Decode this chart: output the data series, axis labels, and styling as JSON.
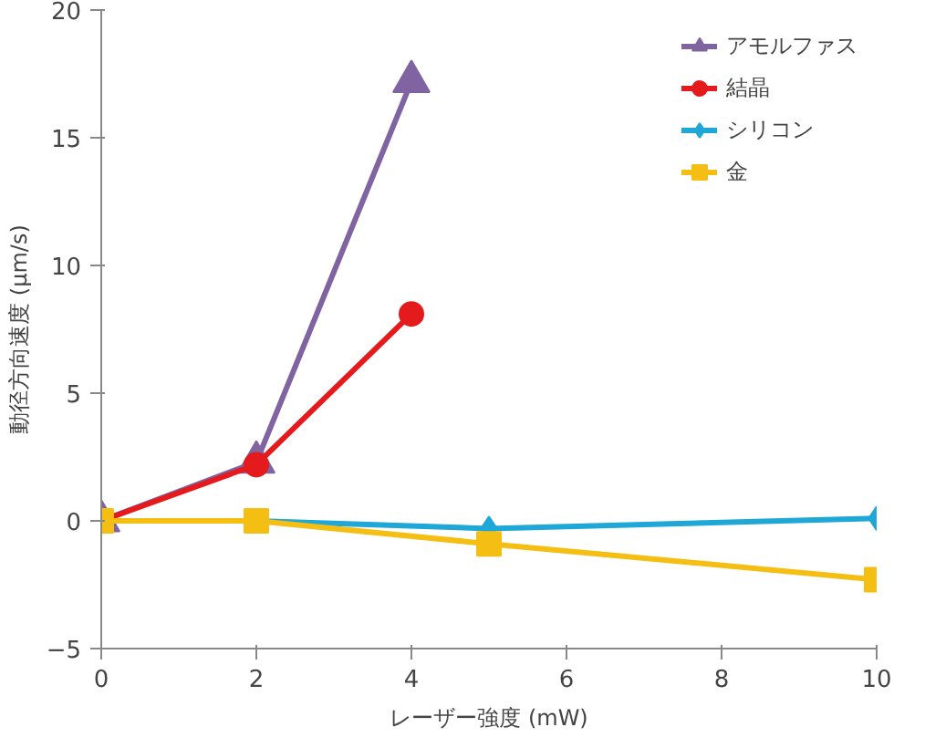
{
  "chart_data": {
    "type": "line",
    "xlabel": "レーザー強度 (mW)",
    "ylabel": "動径方向速度 (μm/s)",
    "xlim": [
      0,
      10
    ],
    "xticks": [
      0,
      2,
      4,
      6,
      8,
      10
    ],
    "ylim": [
      -5,
      20
    ],
    "yticks": [
      -5,
      0,
      5,
      10,
      15,
      20
    ],
    "grid": false,
    "legend": "top right",
    "series": [
      {
        "name": "アモルファス",
        "color": "#8064a2",
        "marker": "triangle",
        "x": [
          0,
          2,
          4
        ],
        "values": [
          0,
          2.3,
          17.2
        ]
      },
      {
        "name": "結晶",
        "color": "#e41a1c",
        "marker": "circle",
        "x": [
          0,
          2,
          4
        ],
        "values": [
          0,
          2.2,
          8.1
        ]
      },
      {
        "name": "シリコン",
        "color": "#1fa7d8",
        "marker": "diamond",
        "x": [
          0,
          2,
          5,
          10
        ],
        "values": [
          0,
          0,
          -0.3,
          0.1
        ]
      },
      {
        "name": "金",
        "color": "#f5be12",
        "marker": "square",
        "x": [
          0,
          2,
          5,
          10
        ],
        "values": [
          0,
          0,
          -0.9,
          -2.3
        ]
      }
    ]
  }
}
